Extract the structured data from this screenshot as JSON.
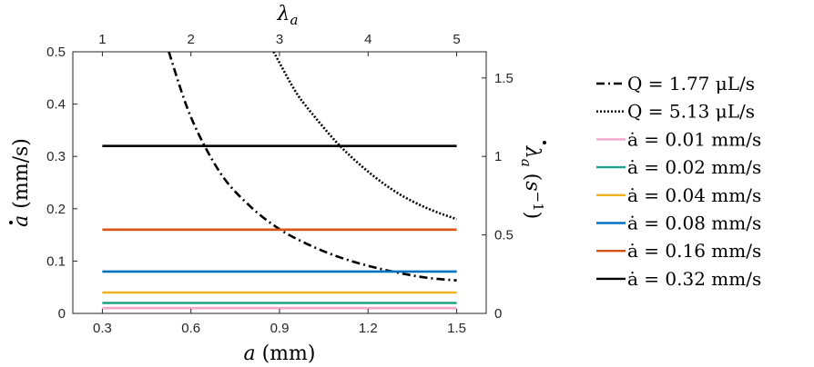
{
  "chart_data": {
    "type": "line",
    "xlabel": "a (mm)",
    "ylabel": "ȧ (mm/s)",
    "top_xlabel": "λa",
    "right_ylabel": "λ̇a (s⁻¹)",
    "xlim": [
      0.2,
      1.6
    ],
    "ylim": [
      0,
      0.5
    ],
    "x_ticks": [
      0.3,
      0.6,
      0.9,
      1.2,
      1.5
    ],
    "x_tick_labels": [
      "0.3",
      "0.6",
      "0.9",
      "1.2",
      "1.5"
    ],
    "y_ticks": [
      0,
      0.1,
      0.2,
      0.3,
      0.4,
      0.5
    ],
    "y_tick_labels": [
      "0",
      "0.1",
      "0.2",
      "0.3",
      "0.4",
      "0.5"
    ],
    "top_ticks": [
      1,
      2,
      3,
      4,
      5
    ],
    "top_tick_labels": [
      "1",
      "2",
      "3",
      "4",
      "5"
    ],
    "right_ticks": [
      0,
      0.5,
      1,
      1.5
    ],
    "right_tick_labels": [
      "0",
      "0.5",
      "1",
      "1.5"
    ],
    "right_ylim": [
      0,
      1.6667
    ],
    "grid": false,
    "legend_position": "outside-right",
    "series": [
      {
        "name": "Q = 1.77 μL/s",
        "color": "#000000",
        "dash": "dashdot",
        "x": [
          0.525,
          0.6,
          0.7,
          0.8,
          0.9,
          1.0,
          1.1,
          1.2,
          1.3,
          1.4,
          1.5
        ],
        "y": [
          0.5,
          0.375,
          0.268,
          0.205,
          0.161,
          0.131,
          0.108,
          0.091,
          0.078,
          0.068,
          0.063
        ]
      },
      {
        "name": "Q = 5.13 μL/s",
        "color": "#000000",
        "dash": "dotted",
        "x": [
          0.88,
          0.95,
          1.0,
          1.1,
          1.2,
          1.3,
          1.4,
          1.5
        ],
        "y": [
          0.5,
          0.428,
          0.389,
          0.323,
          0.271,
          0.23,
          0.201,
          0.18
        ]
      },
      {
        "name": "ȧ = 0.01 mm/s",
        "color": "#f4a6c8",
        "dash": "solid",
        "x": [
          0.3,
          1.5
        ],
        "y": [
          0.01,
          0.01
        ]
      },
      {
        "name": "ȧ = 0.02 mm/s",
        "color": "#1fa187",
        "dash": "solid",
        "x": [
          0.3,
          1.5
        ],
        "y": [
          0.02,
          0.02
        ]
      },
      {
        "name": "ȧ = 0.04 mm/s",
        "color": "#edb120",
        "dash": "solid",
        "x": [
          0.3,
          1.5
        ],
        "y": [
          0.04,
          0.04
        ]
      },
      {
        "name": "ȧ = 0.08 mm/s",
        "color": "#0072bd",
        "dash": "solid",
        "x": [
          0.3,
          1.5
        ],
        "y": [
          0.08,
          0.08
        ]
      },
      {
        "name": "ȧ = 0.16 mm/s",
        "color": "#d95319",
        "dash": "solid",
        "x": [
          0.3,
          1.5
        ],
        "y": [
          0.16,
          0.16
        ]
      },
      {
        "name": "ȧ = 0.32 mm/s",
        "color": "#000000",
        "dash": "solid",
        "x": [
          0.3,
          1.5
        ],
        "y": [
          0.32,
          0.32
        ]
      }
    ]
  }
}
